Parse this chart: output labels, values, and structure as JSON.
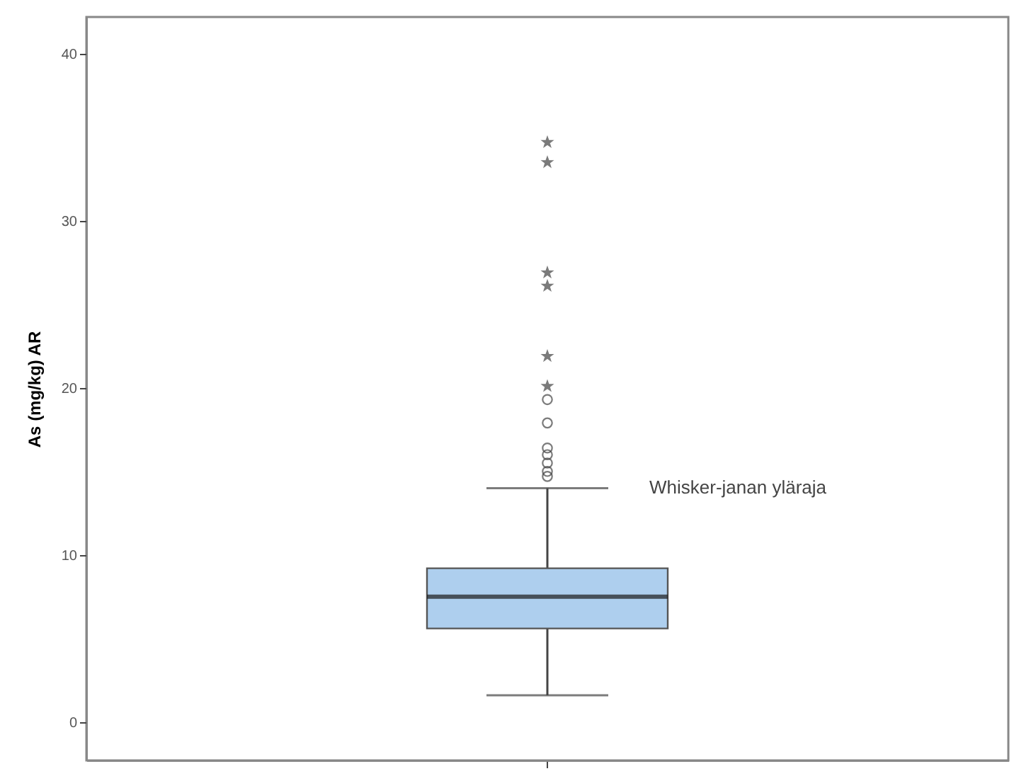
{
  "chart_data": {
    "type": "box",
    "ylabel": "As (mg/kg) AR",
    "categories": [
      null
    ],
    "boxes": [
      {
        "low": 1.6,
        "q1": 5.6,
        "median": 7.5,
        "q3": 9.2,
        "high": 14,
        "outliers": [
          14.7,
          15.0,
          15.5,
          16.0,
          16.4,
          17.9,
          19.3,
          20.1,
          21.9,
          26.1,
          26.9,
          33.5,
          34.7
        ]
      }
    ],
    "color": "#aecfee",
    "ylim": [
      -2.3,
      42.2
    ],
    "yticks": [
      0,
      10,
      20,
      30,
      40
    ],
    "grid": false,
    "annotations": [
      "Whisker-janan yläraja"
    ]
  }
}
